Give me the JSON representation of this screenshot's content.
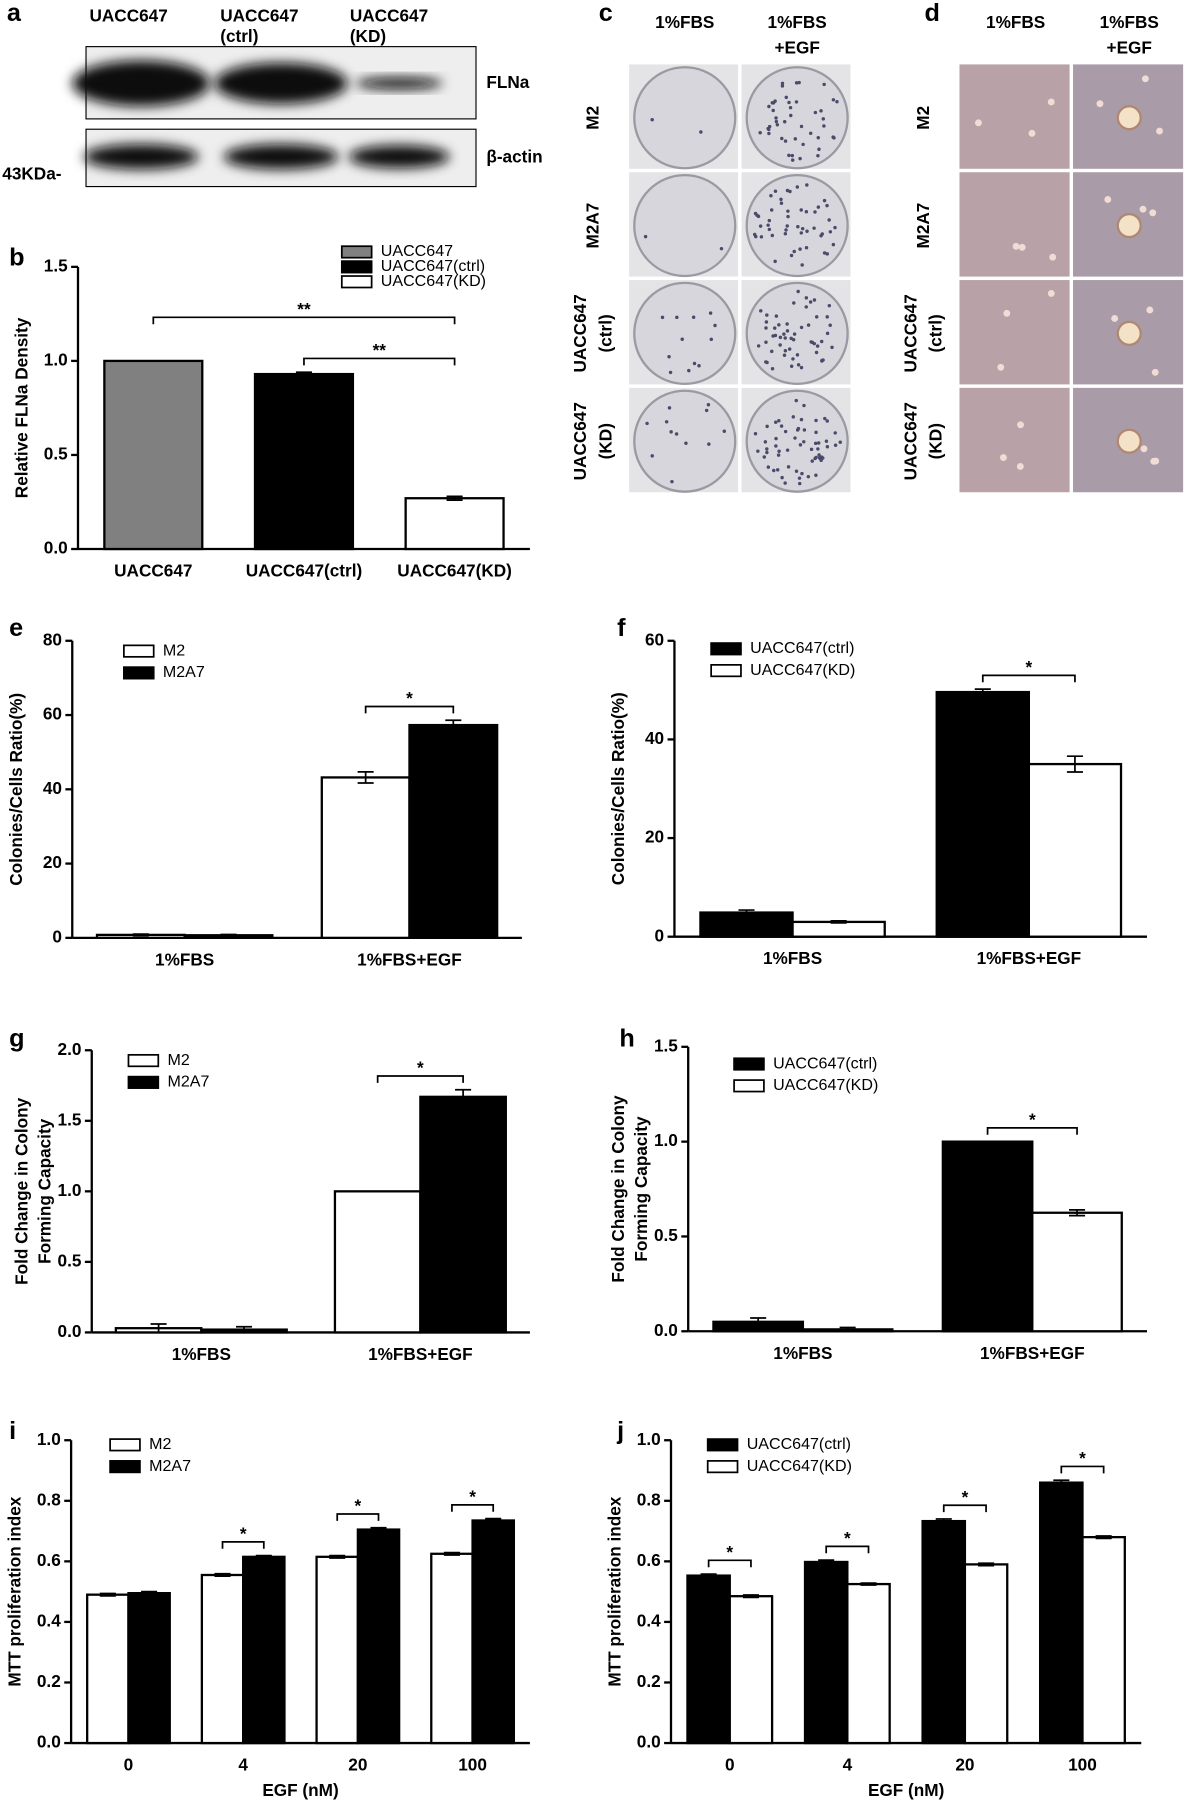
{
  "blot": {
    "panel": "a",
    "lanes": [
      [
        "UACC647"
      ],
      [
        "UACC647",
        "(ctrl)"
      ],
      [
        "UACC647",
        "(KD)"
      ]
    ],
    "bands": [
      "FLNa",
      "β-actin"
    ],
    "marker": "43KDa-"
  },
  "colony_images": {
    "panel": "c",
    "columns": [
      [
        "1%FBS"
      ],
      [
        "1%FBS",
        "+EGF"
      ]
    ],
    "rows": [
      [
        "M2"
      ],
      [
        "M2A7"
      ],
      [
        "UACC647",
        "(ctrl)"
      ],
      [
        "UACC647",
        "(KD)"
      ]
    ]
  },
  "micrographs": {
    "panel": "d",
    "columns": [
      [
        "1%FBS"
      ],
      [
        "1%FBS",
        "+EGF"
      ]
    ],
    "rows": [
      [
        "M2"
      ],
      [
        "M2A7"
      ],
      [
        "UACC647",
        "(ctrl)"
      ],
      [
        "UACC647",
        "(KD)"
      ]
    ]
  },
  "chart_data": [
    {
      "type": "bar",
      "panel": "b",
      "ylabel": "Relative FLNa Density",
      "categories": [
        "UACC647",
        "UACC647(ctrl)",
        "UACC647(KD)"
      ],
      "values": [
        1.0,
        0.93,
        0.27
      ],
      "errors": [
        null,
        0.01,
        0.01
      ],
      "colors": [
        "#808080",
        "#000000",
        "#ffffff"
      ],
      "ylim": [
        0,
        1.5
      ],
      "yticks": [
        {
          "value": 0,
          "label": "0.0"
        },
        0.5,
        {
          "value": 1,
          "label": "1.0"
        },
        1.5
      ],
      "annotations": [
        {
          "text": "**",
          "categories": [
            0,
            2
          ]
        },
        {
          "text": "**",
          "categories": [
            1,
            2
          ]
        }
      ]
    },
    {
      "type": "grouped-bar",
      "panel": "e",
      "ylabel": "Colonies/Cells Ratio(%)",
      "categories": [
        "1%FBS",
        "1%FBS+EGF"
      ],
      "series": [
        {
          "name": "M2",
          "color": "#ffffff",
          "values": [
            0.8,
            43.2
          ],
          "errors": [
            0.2,
            1.5
          ]
        },
        {
          "name": "M2A7",
          "color": "#000000",
          "values": [
            0.7,
            57.3
          ],
          "errors": [
            0.2,
            1.3
          ]
        }
      ],
      "ylim": [
        0,
        80
      ],
      "yticks": [
        0,
        20,
        40,
        60,
        80
      ],
      "annotations": [
        {
          "text": "*",
          "categories": [
            1
          ]
        }
      ]
    },
    {
      "type": "grouped-bar",
      "panel": "f",
      "ylabel": "Colonies/Cells Ratio(%)",
      "categories": [
        "1%FBS",
        "1%FBS+EGF"
      ],
      "series": [
        {
          "name": "UACC647(ctrl)",
          "color": "#000000",
          "values": [
            4.9,
            49.6
          ],
          "errors": [
            0.5,
            0.6
          ]
        },
        {
          "name": "UACC647(KD)",
          "color": "#ffffff",
          "values": [
            3.0,
            35.0
          ],
          "errors": [
            0.2,
            1.6
          ]
        }
      ],
      "ylim": [
        0,
        60
      ],
      "yticks": [
        0,
        20,
        40,
        60
      ],
      "annotations": [
        {
          "text": "*",
          "categories": [
            1
          ]
        }
      ]
    },
    {
      "type": "grouped-bar",
      "panel": "g",
      "ylabel": [
        "Fold Change in Colony",
        "Forming Capacity"
      ],
      "categories": [
        "1%FBS",
        "1%FBS+EGF"
      ],
      "series": [
        {
          "name": "M2",
          "color": "#ffffff",
          "values": [
            0.03,
            1.0
          ],
          "errors": [
            0.03,
            null
          ]
        },
        {
          "name": "M2A7",
          "color": "#000000",
          "values": [
            0.02,
            1.67
          ],
          "errors": [
            0.02,
            0.05
          ]
        }
      ],
      "ylim": [
        0,
        2
      ],
      "yticks": [
        {
          "value": 0,
          "label": "0.0"
        },
        0.5,
        {
          "value": 1,
          "label": "1.0"
        },
        1.5,
        {
          "value": 2,
          "label": "2.0"
        }
      ],
      "annotations": [
        {
          "text": "*",
          "categories": [
            1
          ]
        }
      ]
    },
    {
      "type": "grouped-bar",
      "panel": "h",
      "ylabel": [
        "Fold Change in Colony",
        "Forming Capacity"
      ],
      "categories": [
        "1%FBS",
        "1%FBS+EGF"
      ],
      "series": [
        {
          "name": "UACC647(ctrl)",
          "color": "#000000",
          "values": [
            0.05,
            1.0
          ],
          "errors": [
            0.02,
            null
          ]
        },
        {
          "name": "UACC647(KD)",
          "color": "#ffffff",
          "values": [
            0.01,
            0.625
          ],
          "errors": [
            0.01,
            0.015
          ]
        }
      ],
      "ylim": [
        0,
        1.5
      ],
      "yticks": [
        {
          "value": 0,
          "label": "0.0"
        },
        0.5,
        {
          "value": 1,
          "label": "1.0"
        },
        1.5
      ],
      "annotations": [
        {
          "text": "*",
          "categories": [
            1
          ]
        }
      ]
    },
    {
      "type": "grouped-bar",
      "panel": "i",
      "ylabel": "MTT proliferation index",
      "xlabel": "EGF (nM)",
      "categories": [
        "0",
        "4",
        "20",
        "100"
      ],
      "series": [
        {
          "name": "M2",
          "color": "#ffffff",
          "values": [
            0.49,
            0.555,
            0.615,
            0.625
          ],
          "errors": [
            0.004,
            0.004,
            0.004,
            0.004
          ]
        },
        {
          "name": "M2A7",
          "color": "#000000",
          "values": [
            0.495,
            0.615,
            0.705,
            0.735
          ],
          "errors": [
            0.005,
            0.004,
            0.006,
            0.006
          ]
        }
      ],
      "ylim": [
        0,
        1
      ],
      "yticks": [
        {
          "value": 0,
          "label": "0.0"
        },
        0.2,
        0.4,
        0.6,
        0.8,
        {
          "value": 1,
          "label": "1.0"
        }
      ],
      "annotations": [
        {
          "text": "*",
          "categories": [
            1
          ]
        },
        {
          "text": "*",
          "categories": [
            2
          ]
        },
        {
          "text": "*",
          "categories": [
            3
          ]
        }
      ]
    },
    {
      "type": "grouped-bar",
      "panel": "j",
      "ylabel": "MTT proliferation index",
      "xlabel": "EGF (nM)",
      "categories": [
        "0",
        "4",
        "20",
        "100"
      ],
      "series": [
        {
          "name": "UACC647(ctrl)",
          "color": "#000000",
          "values": [
            0.553,
            0.598,
            0.733,
            0.86
          ],
          "errors": [
            0.005,
            0.006,
            0.007,
            0.008
          ]
        },
        {
          "name": "UACC647(KD)",
          "color": "#ffffff",
          "values": [
            0.485,
            0.525,
            0.59,
            0.68
          ],
          "errors": [
            0.004,
            0.003,
            0.004,
            0.004
          ]
        }
      ],
      "ylim": [
        0,
        1
      ],
      "yticks": [
        {
          "value": 0,
          "label": "0.0"
        },
        0.2,
        0.4,
        0.6,
        0.8,
        {
          "value": 1,
          "label": "1.0"
        }
      ],
      "annotations": [
        {
          "text": "*",
          "categories": [
            0
          ]
        },
        {
          "text": "*",
          "categories": [
            1
          ]
        },
        {
          "text": "*",
          "categories": [
            2
          ]
        },
        {
          "text": "*",
          "categories": [
            3
          ]
        }
      ]
    }
  ]
}
